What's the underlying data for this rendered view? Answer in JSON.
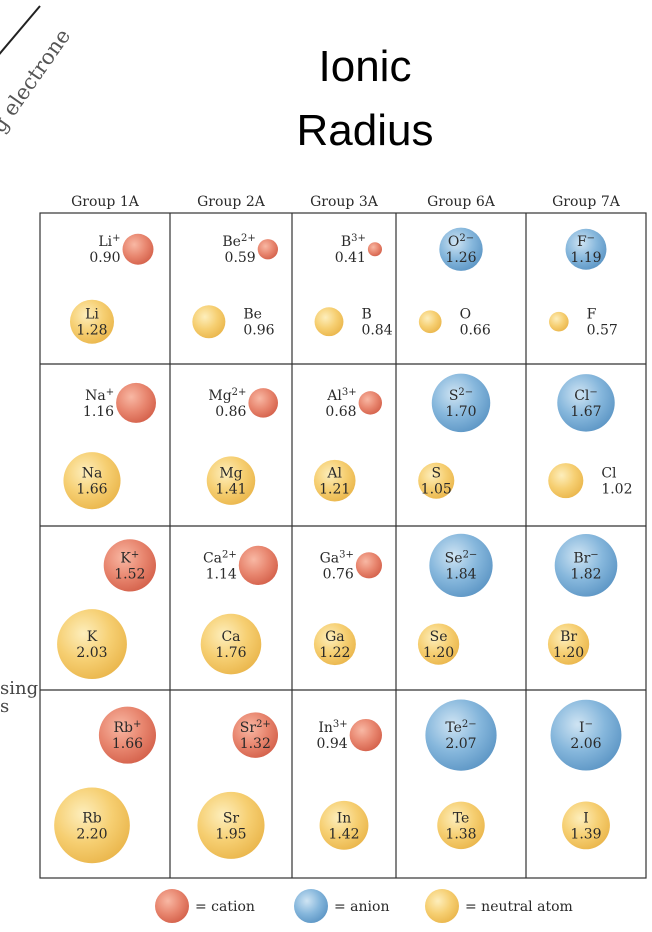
{
  "title": {
    "line1": "Ionic",
    "line2": "Radius"
  },
  "fragments": {
    "top_left": "g electrone",
    "left1": "sing",
    "left2": "s"
  },
  "colors": {
    "cation": "#e5826d",
    "anion": "#7db0d8",
    "neutral": "#f4cc6e",
    "grid": "#333333"
  },
  "groups": [
    "Group 1A",
    "Group 2A",
    "Group 3A",
    "Group 6A",
    "Group 7A"
  ],
  "cells": [
    [
      {
        "ion": {
          "symbol": "Li",
          "charge": "+",
          "radius": "0.90"
        },
        "atom": {
          "symbol": "Li",
          "radius": "1.28"
        }
      },
      {
        "ion": {
          "symbol": "Be",
          "charge": "2+",
          "radius": "0.59"
        },
        "atom": {
          "symbol": "Be",
          "radius": "0.96"
        }
      },
      {
        "ion": {
          "symbol": "B",
          "charge": "3+",
          "radius": "0.41"
        },
        "atom": {
          "symbol": "B",
          "radius": "0.84"
        }
      },
      {
        "ion": {
          "symbol": "O",
          "charge": "2−",
          "radius": "1.26"
        },
        "atom": {
          "symbol": "O",
          "radius": "0.66"
        }
      },
      {
        "ion": {
          "symbol": "F",
          "charge": "−",
          "radius": "1.19"
        },
        "atom": {
          "symbol": "F",
          "radius": "0.57"
        }
      }
    ],
    [
      {
        "ion": {
          "symbol": "Na",
          "charge": "+",
          "radius": "1.16"
        },
        "atom": {
          "symbol": "Na",
          "radius": "1.66"
        }
      },
      {
        "ion": {
          "symbol": "Mg",
          "charge": "2+",
          "radius": "0.86"
        },
        "atom": {
          "symbol": "Mg",
          "radius": "1.41"
        }
      },
      {
        "ion": {
          "symbol": "Al",
          "charge": "3+",
          "radius": "0.68"
        },
        "atom": {
          "symbol": "Al",
          "radius": "1.21"
        }
      },
      {
        "ion": {
          "symbol": "S",
          "charge": "2−",
          "radius": "1.70"
        },
        "atom": {
          "symbol": "S",
          "radius": "1.05"
        }
      },
      {
        "ion": {
          "symbol": "Cl",
          "charge": "−",
          "radius": "1.67"
        },
        "atom": {
          "symbol": "Cl",
          "radius": "1.02"
        }
      }
    ],
    [
      {
        "ion": {
          "symbol": "K",
          "charge": "+",
          "radius": "1.52"
        },
        "atom": {
          "symbol": "K",
          "radius": "2.03"
        }
      },
      {
        "ion": {
          "symbol": "Ca",
          "charge": "2+",
          "radius": "1.14"
        },
        "atom": {
          "symbol": "Ca",
          "radius": "1.76"
        }
      },
      {
        "ion": {
          "symbol": "Ga",
          "charge": "3+",
          "radius": "0.76"
        },
        "atom": {
          "symbol": "Ga",
          "radius": "1.22"
        }
      },
      {
        "ion": {
          "symbol": "Se",
          "charge": "2−",
          "radius": "1.84"
        },
        "atom": {
          "symbol": "Se",
          "radius": "1.20"
        }
      },
      {
        "ion": {
          "symbol": "Br",
          "charge": "−",
          "radius": "1.82"
        },
        "atom": {
          "symbol": "Br",
          "radius": "1.20"
        }
      }
    ],
    [
      {
        "ion": {
          "symbol": "Rb",
          "charge": "+",
          "radius": "1.66"
        },
        "atom": {
          "symbol": "Rb",
          "radius": "2.20"
        }
      },
      {
        "ion": {
          "symbol": "Sr",
          "charge": "2+",
          "radius": "1.32"
        },
        "atom": {
          "symbol": "Sr",
          "radius": "1.95"
        }
      },
      {
        "ion": {
          "symbol": "In",
          "charge": "3+",
          "radius": "0.94"
        },
        "atom": {
          "symbol": "In",
          "radius": "1.42"
        }
      },
      {
        "ion": {
          "symbol": "Te",
          "charge": "2−",
          "radius": "2.07"
        },
        "atom": {
          "symbol": "Te",
          "radius": "1.38"
        }
      },
      {
        "ion": {
          "symbol": "I",
          "charge": "−",
          "radius": "2.06"
        },
        "atom": {
          "symbol": "I",
          "radius": "1.39"
        }
      }
    ]
  ],
  "legend": [
    {
      "label": "= cation",
      "kind": "cation"
    },
    {
      "label": "= anion",
      "kind": "anion"
    },
    {
      "label": "= neutral atom",
      "kind": "neutral"
    }
  ]
}
